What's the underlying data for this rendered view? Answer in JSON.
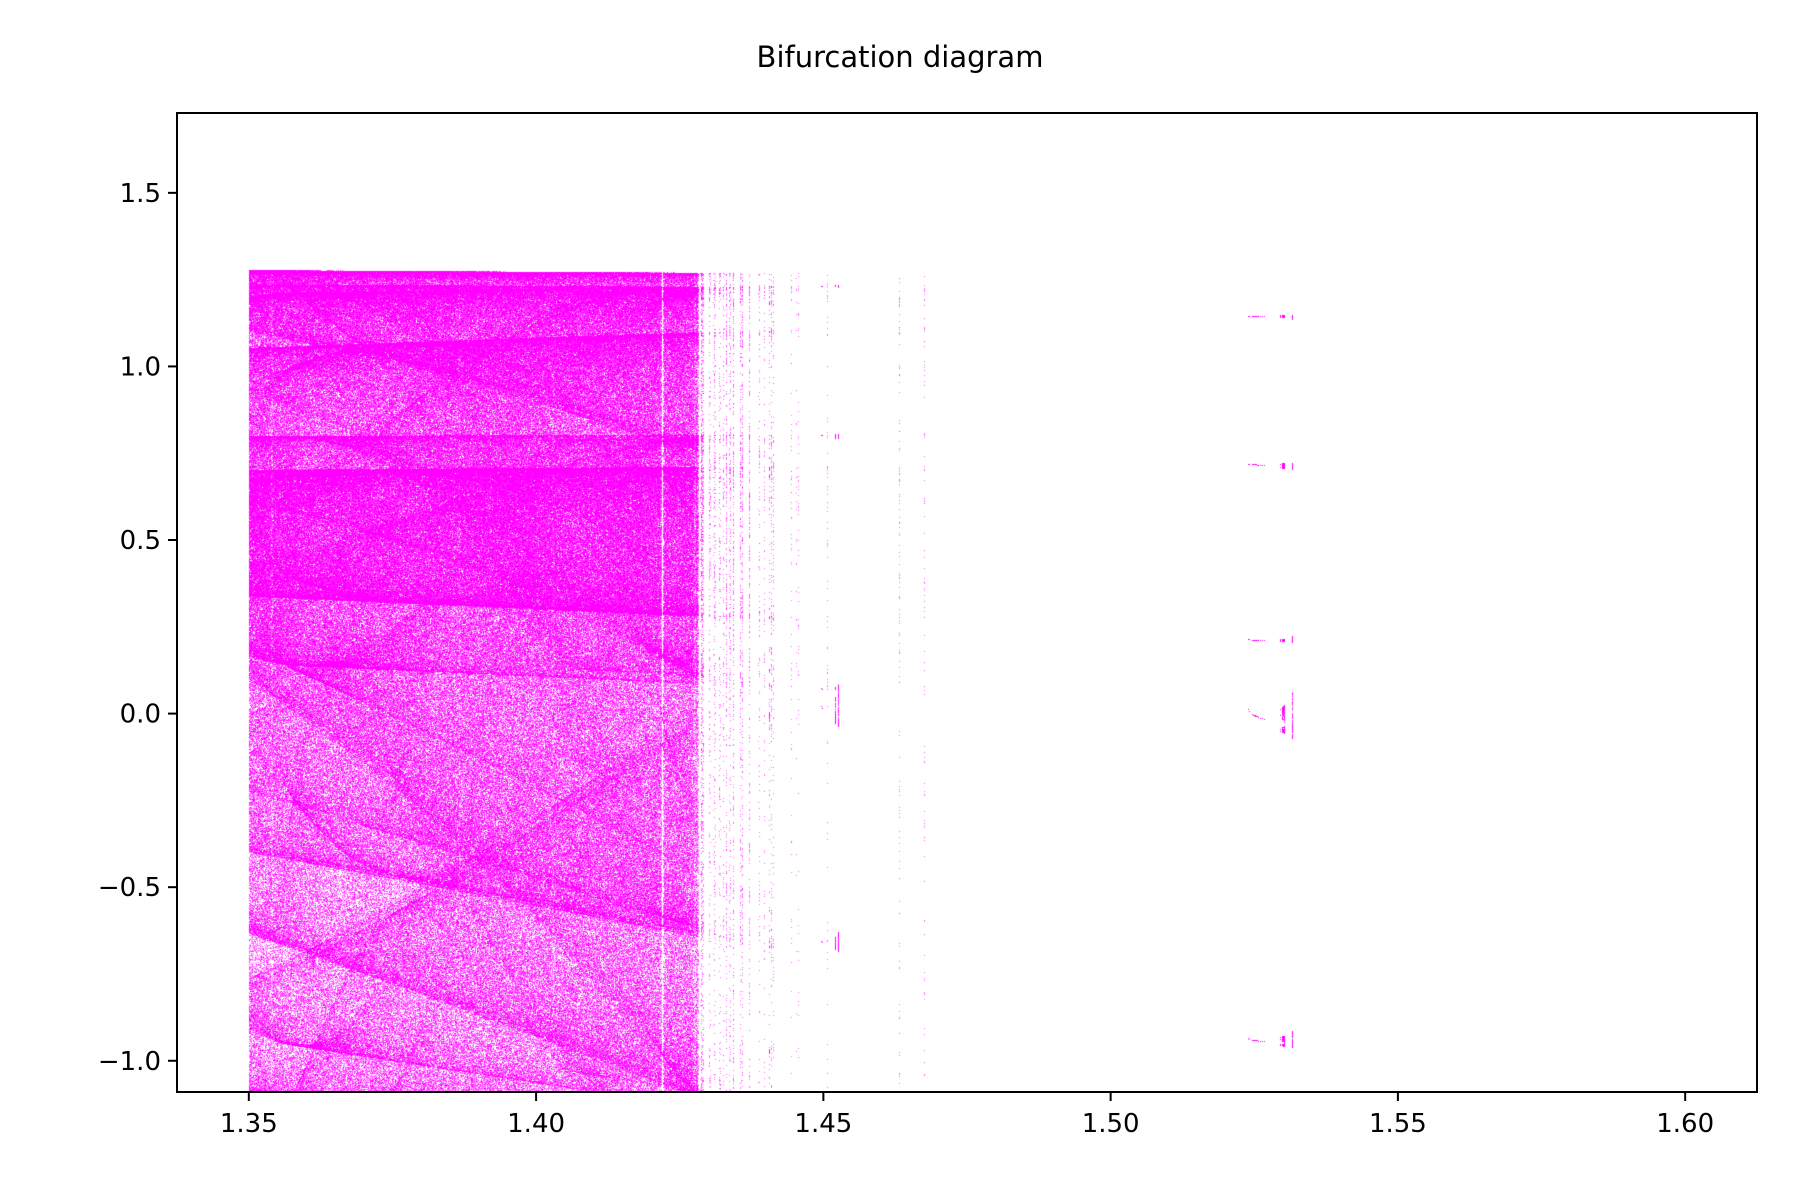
{
  "chart_data": {
    "type": "scatter",
    "title": "Bifurcation diagram",
    "xlabel": "",
    "ylabel": "",
    "xlim": [
      1.3375,
      1.6125
    ],
    "ylim": [
      -1.09,
      1.73
    ],
    "x_ticks": [
      1.35,
      1.4,
      1.45,
      1.5,
      1.55,
      1.6
    ],
    "x_tick_labels": [
      "1.35",
      "1.40",
      "1.45",
      "1.50",
      "1.55",
      "1.60"
    ],
    "y_ticks": [
      -1.0,
      -0.5,
      0.0,
      0.5,
      1.0,
      1.5
    ],
    "y_tick_labels": [
      "−1.0",
      "−0.5",
      "0.0",
      "0.5",
      "1.0",
      "1.5"
    ],
    "grid": false,
    "series": [
      {
        "map": "Henon-type map, a in [1.35, 1.60], b = 0.3",
        "parameter_range": [
          1.35,
          1.6
        ],
        "color": "#ff00ff",
        "points": "attractor x-values sampled across the parameter range (dense point cloud)"
      }
    ]
  }
}
